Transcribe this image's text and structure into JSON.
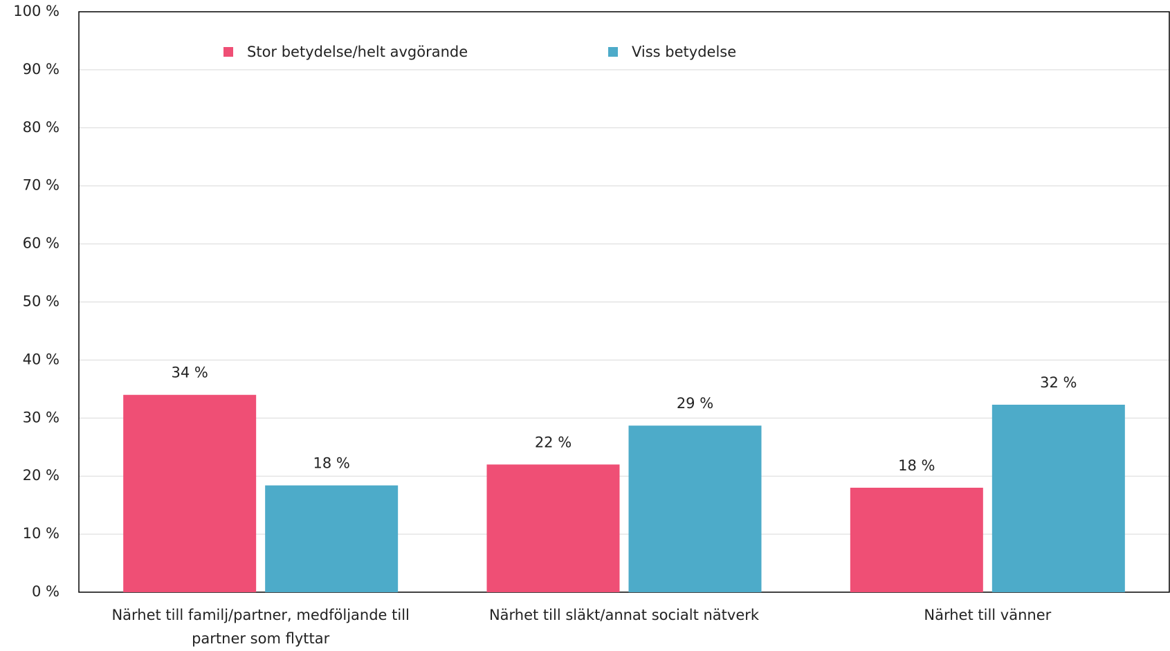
{
  "chart_data": {
    "type": "bar",
    "categories": [
      "Närhet till familj/partner, medföljande till partner som flyttar",
      "Närhet till släkt/annat socialt nätverk",
      "Närhet till vänner"
    ],
    "series": [
      {
        "name": "Stor betydelse/helt avgörande",
        "color": "#ef4f75",
        "values": [
          34,
          22,
          18
        ],
        "value_labels": [
          "34 %",
          "22 %",
          "18 %"
        ]
      },
      {
        "name": "Viss betydelse",
        "color": "#4dabc9",
        "values": [
          18.4,
          28.7,
          32.3
        ],
        "value_labels": [
          "18 %",
          "29 %",
          "32 %"
        ]
      }
    ],
    "ylim": [
      0,
      100
    ],
    "yticks": [
      {
        "value": 0,
        "label": "0 %"
      },
      {
        "value": 10,
        "label": "10 %"
      },
      {
        "value": 20,
        "label": "20 %"
      },
      {
        "value": 30,
        "label": "30 %"
      },
      {
        "value": 40,
        "label": "40 %"
      },
      {
        "value": 50,
        "label": "50 %"
      },
      {
        "value": 60,
        "label": "60 %"
      },
      {
        "value": 70,
        "label": "70 %"
      },
      {
        "value": 80,
        "label": "80 %"
      },
      {
        "value": 90,
        "label": "90 %"
      },
      {
        "value": 100,
        "label": "100 %"
      }
    ],
    "grid": true,
    "legend": "top"
  }
}
